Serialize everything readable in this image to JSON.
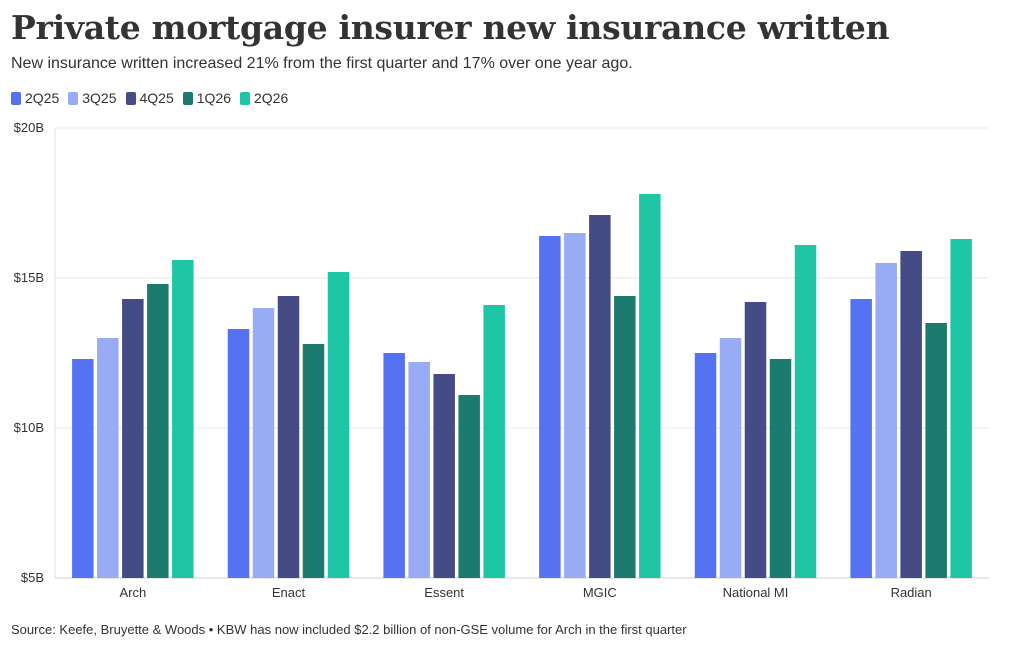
{
  "header": {
    "title": "Private mortgage insurer new insurance written",
    "subtitle": "New insurance written increased 21% from the first quarter and 17% over one year ago."
  },
  "footer": {
    "source": "Source: Keefe, Bruyette & Woods • KBW has now included $2.2 billion of non-GSE volume for Arch in the first quarter"
  },
  "chart_data": {
    "type": "bar",
    "categories": [
      "Arch",
      "Enact",
      "Essent",
      "MGIC",
      "National MI",
      "Radian"
    ],
    "series": [
      {
        "name": "2Q25",
        "color": "#5572f2",
        "values": [
          12.3,
          13.3,
          12.5,
          16.4,
          12.5,
          14.3
        ]
      },
      {
        "name": "3Q25",
        "color": "#98acf6",
        "values": [
          13.0,
          14.0,
          12.2,
          16.5,
          13.0,
          15.5
        ]
      },
      {
        "name": "4Q25",
        "color": "#454c85",
        "values": [
          14.3,
          14.4,
          11.8,
          17.1,
          14.2,
          15.9
        ]
      },
      {
        "name": "1Q26",
        "color": "#1c7b6f",
        "values": [
          14.8,
          12.8,
          11.1,
          14.4,
          12.3,
          13.5
        ]
      },
      {
        "name": "2Q26",
        "color": "#1ec6a6",
        "values": [
          15.6,
          15.2,
          14.1,
          17.8,
          16.1,
          16.3
        ]
      }
    ],
    "ylim": [
      5,
      20
    ],
    "yticks": [
      5,
      10,
      15,
      20
    ],
    "ytick_labels": [
      "$5B",
      "$10B",
      "$15B",
      "$20B"
    ],
    "xlabel": "",
    "ylabel": "",
    "grid": true,
    "legend_position": "top-left"
  }
}
